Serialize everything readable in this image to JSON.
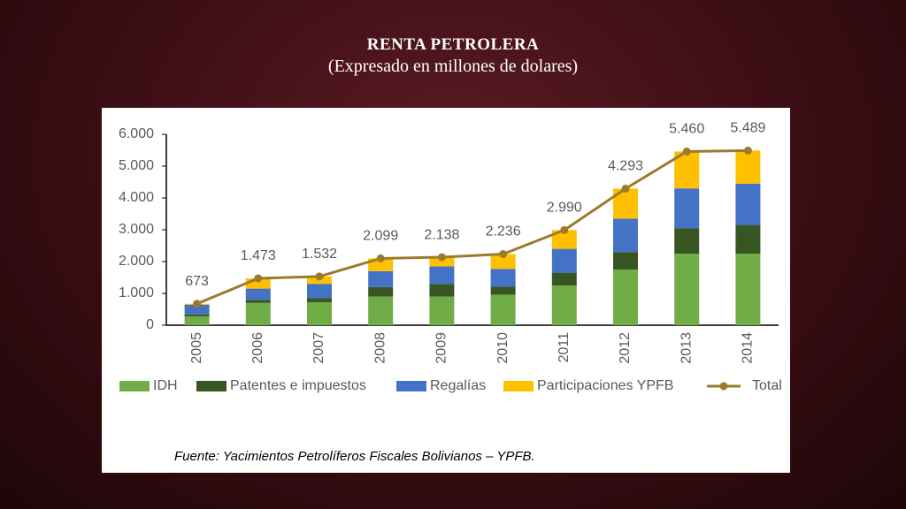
{
  "header": {
    "title": "RENTA PETROLERA",
    "subtitle": "(Expresado en millones de dolares)"
  },
  "chart_data": {
    "type": "bar",
    "stacked": true,
    "categories": [
      "2005",
      "2006",
      "2007",
      "2008",
      "2009",
      "2010",
      "2011",
      "2012",
      "2013",
      "2014"
    ],
    "series": [
      {
        "name": "IDH",
        "color": "#70ad47",
        "values": [
          280,
          700,
          720,
          900,
          900,
          960,
          1250,
          1750,
          2250,
          2250
        ]
      },
      {
        "name": "Patentes e impuestos",
        "color": "#375623",
        "values": [
          60,
          100,
          130,
          300,
          400,
          250,
          400,
          550,
          800,
          900
        ]
      },
      {
        "name": "Regalías",
        "color": "#4472c4",
        "values": [
          300,
          350,
          450,
          500,
          550,
          560,
          750,
          1050,
          1250,
          1300
        ]
      },
      {
        "name": "Participaciones YPFB",
        "color": "#ffc000",
        "values": [
          33,
          323,
          232,
          399,
          288,
          466,
          590,
          943,
          1160,
          1039
        ]
      },
      {
        "name": "Total",
        "type": "line",
        "color": "#9c7a2c",
        "values": [
          673,
          1473,
          1532,
          2099,
          2138,
          2236,
          2990,
          4293,
          5460,
          5489
        ],
        "value_labels": [
          "673",
          "1.473",
          "1.532",
          "2.099",
          "2.138",
          "2.236",
          "2.990",
          "4.293",
          "5.460",
          "5.489"
        ]
      }
    ],
    "ylim": [
      0,
      6000
    ],
    "yticks": [
      0,
      {
        "value": 1000,
        "label": "1.000"
      },
      {
        "value": 2000,
        "label": "2.000"
      },
      {
        "value": 3000,
        "label": "3.000"
      },
      {
        "value": 4000,
        "label": "4.000"
      },
      {
        "value": 5000,
        "label": "5.000"
      },
      {
        "value": 6000,
        "label": "6.000"
      }
    ],
    "grid": false,
    "legend": "bottom"
  },
  "source": "Fuente: Yacimientos Petrolíferos Fiscales Bolivianos – YPFB."
}
